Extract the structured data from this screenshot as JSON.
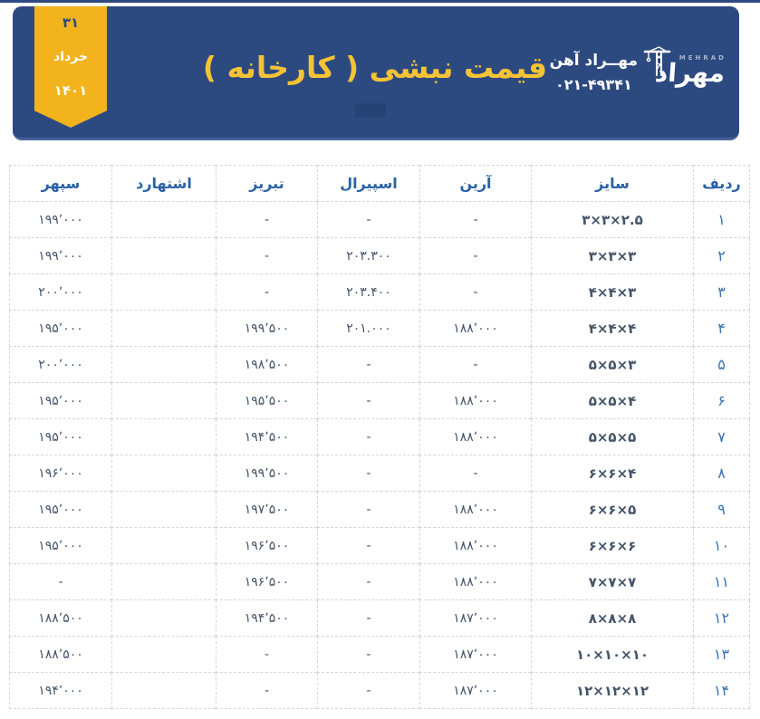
{
  "colors": {
    "header_navy": "#2d4a80",
    "ribbon_gold": "#f2b31d",
    "title_gold": "#f6c334",
    "header_text_blue": "#2a62a5",
    "cell_text": "#44546a"
  },
  "ribbon": {
    "day": "۳۱",
    "month": "خرداد",
    "year": "۱۴۰۱"
  },
  "header": {
    "title": "قیمت نبشی ( کارخانه )",
    "company_name": "مهــراد آهن",
    "phone": "۰۲۱-۴۹۳۴۱",
    "logo": {
      "wordmark": "مهراد",
      "latin": "MEHRAD",
      "icon": "tower-crane-icon"
    }
  },
  "table": {
    "columns": [
      {
        "key": "radif",
        "label": "ردیف"
      },
      {
        "key": "size",
        "label": "سایز"
      },
      {
        "key": "arian",
        "label": "آرین"
      },
      {
        "key": "spiral",
        "label": "اسپیرال"
      },
      {
        "key": "tabriz",
        "label": "تبریز"
      },
      {
        "key": "eshtehard",
        "label": "اشتهارد"
      },
      {
        "key": "sepehr",
        "label": "سپهر"
      }
    ],
    "rows": [
      {
        "radif": "۱",
        "size": "۳×۳×۲.۵",
        "arian": "-",
        "spiral": "-",
        "tabriz": "-",
        "eshtehard": "",
        "sepehr": "۱۹۹٬۰۰۰"
      },
      {
        "radif": "۲",
        "size": "۳×۳×۳",
        "arian": "-",
        "spiral": "۲۰۳.۳۰۰",
        "tabriz": "-",
        "eshtehard": "",
        "sepehr": "۱۹۹٬۰۰۰"
      },
      {
        "radif": "۳",
        "size": "۴×۴×۳",
        "arian": "-",
        "spiral": "۲۰۳.۴۰۰",
        "tabriz": "-",
        "eshtehard": "",
        "sepehr": "۲۰۰٬۰۰۰"
      },
      {
        "radif": "۴",
        "size": "۴×۴×۴",
        "arian": "۱۸۸٬۰۰۰",
        "spiral": "۲۰۱.۰۰۰",
        "tabriz": "۱۹۹٬۵۰۰",
        "eshtehard": "",
        "sepehr": "۱۹۵٬۰۰۰"
      },
      {
        "radif": "۵",
        "size": "۵×۵×۳",
        "arian": "-",
        "spiral": "-",
        "tabriz": "۱۹۸٬۵۰۰",
        "eshtehard": "",
        "sepehr": "۲۰۰٬۰۰۰"
      },
      {
        "radif": "۶",
        "size": "۵×۵×۴",
        "arian": "۱۸۸٬۰۰۰",
        "spiral": "-",
        "tabriz": "۱۹۵٬۵۰۰",
        "eshtehard": "",
        "sepehr": "۱۹۵٬۰۰۰"
      },
      {
        "radif": "۷",
        "size": "۵×۵×۵",
        "arian": "۱۸۸٬۰۰۰",
        "spiral": "-",
        "tabriz": "۱۹۴٬۵۰۰",
        "eshtehard": "",
        "sepehr": "۱۹۵٬۰۰۰"
      },
      {
        "radif": "۸",
        "size": "۶×۶×۴",
        "arian": "-",
        "spiral": "-",
        "tabriz": "۱۹۹٬۵۰۰",
        "eshtehard": "",
        "sepehr": "۱۹۶٬۰۰۰"
      },
      {
        "radif": "۹",
        "size": "۶×۶×۵",
        "arian": "۱۸۸٬۰۰۰",
        "spiral": "-",
        "tabriz": "۱۹۷٬۵۰۰",
        "eshtehard": "",
        "sepehr": "۱۹۵٬۰۰۰"
      },
      {
        "radif": "۱۰",
        "size": "۶×۶×۶",
        "arian": "۱۸۸٬۰۰۰",
        "spiral": "-",
        "tabriz": "۱۹۶٬۵۰۰",
        "eshtehard": "",
        "sepehr": "۱۹۵٬۰۰۰"
      },
      {
        "radif": "۱۱",
        "size": "۷×۷×۷",
        "arian": "۱۸۸٬۰۰۰",
        "spiral": "-",
        "tabriz": "۱۹۶٬۵۰۰",
        "eshtehard": "",
        "sepehr": "-"
      },
      {
        "radif": "۱۲",
        "size": "۸×۸×۸",
        "arian": "۱۸۷٬۰۰۰",
        "spiral": "-",
        "tabriz": "۱۹۴٬۵۰۰",
        "eshtehard": "",
        "sepehr": "۱۸۸٬۵۰۰"
      },
      {
        "radif": "۱۳",
        "size": "۱۰×۱۰×۱۰",
        "arian": "۱۸۷٬۰۰۰",
        "spiral": "-",
        "tabriz": "-",
        "eshtehard": "",
        "sepehr": "۱۸۸٬۵۰۰"
      },
      {
        "radif": "۱۴",
        "size": "۱۲×۱۲×۱۲",
        "arian": "۱۸۷٬۰۰۰",
        "spiral": "-",
        "tabriz": "-",
        "eshtehard": "",
        "sepehr": "۱۹۴٬۰۰۰"
      }
    ]
  }
}
